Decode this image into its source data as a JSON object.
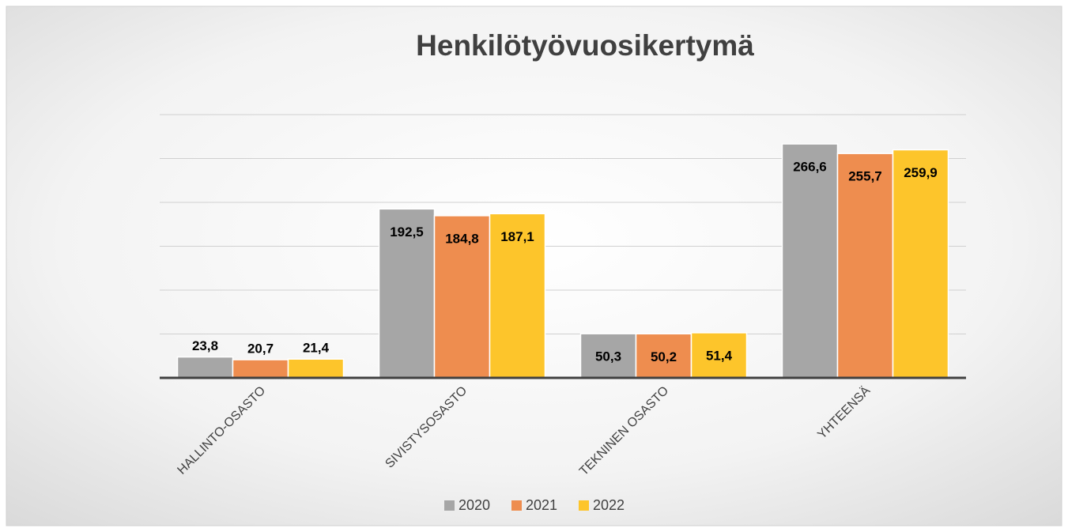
{
  "chart_data": {
    "type": "bar",
    "title": "Henkilötyövuosikertymä",
    "categories": [
      "HALLINTO-OSASTO",
      "SIVISTYSOSASTO",
      "TEKNINEN OSASTO",
      "YHTEENSÄ"
    ],
    "series": [
      {
        "name": "2020",
        "color": "#a6a6a6",
        "values": [
          23.8,
          192.5,
          50.3,
          266.6
        ],
        "value_labels": [
          "23,8",
          "192,5",
          "50,3",
          "266,6"
        ]
      },
      {
        "name": "2021",
        "color": "#ee8d4f",
        "values": [
          20.7,
          184.8,
          50.2,
          255.7
        ],
        "value_labels": [
          "20,7",
          "184,8",
          "50,2",
          "255,7"
        ]
      },
      {
        "name": "2022",
        "color": "#fdc52b",
        "values": [
          21.4,
          187.1,
          51.4,
          259.9
        ],
        "value_labels": [
          "21,4",
          "187,1",
          "51,4",
          "259,9"
        ]
      }
    ],
    "ylim": [
      0,
      300
    ],
    "yticks": [
      0,
      50,
      100,
      150,
      200,
      250,
      300
    ],
    "grid": true,
    "legend": "bottom"
  }
}
